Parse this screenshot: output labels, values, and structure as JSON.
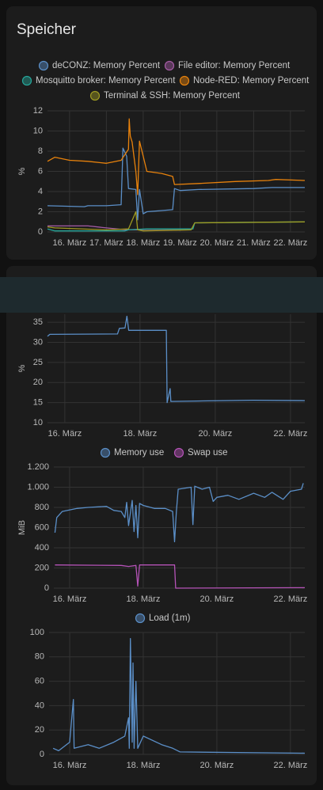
{
  "chart_data": [
    {
      "type": "line",
      "title": "Speicher",
      "ylabel": "%",
      "xlim": [
        15.4,
        22.39
      ],
      "ylim": [
        0,
        12
      ],
      "yticks": [
        0,
        2,
        4,
        6,
        8,
        10,
        12
      ],
      "xticks": [
        {
          "value": 16,
          "label": "16. März"
        },
        {
          "value": 17,
          "label": "17. März"
        },
        {
          "value": 18,
          "label": "18. März"
        },
        {
          "value": 19,
          "label": "19. März"
        },
        {
          "value": 20,
          "label": "20. März"
        },
        {
          "value": 21,
          "label": "21. März"
        },
        {
          "value": 22,
          "label": "22. März"
        }
      ],
      "grid": true,
      "series": [
        {
          "name": "deCONZ: Memory Percent",
          "color": "#5b8fc8",
          "x": [
            15.4,
            16.4,
            16.5,
            17.0,
            17.4,
            17.45,
            17.55,
            17.6,
            17.8,
            17.85,
            17.9,
            18.0,
            18.1,
            18.8,
            18.85,
            19.0,
            19.5,
            21.0,
            21.5,
            22.39
          ],
          "values": [
            2.6,
            2.5,
            2.6,
            2.6,
            2.7,
            8.3,
            7.5,
            4.3,
            4.2,
            1.2,
            4.2,
            1.8,
            2.0,
            2.2,
            4.3,
            4.1,
            4.2,
            4.3,
            4.4,
            4.4
          ]
        },
        {
          "name": "File editor: Memory Percent",
          "color": "#a55ca5",
          "x": [
            15.4,
            16.5,
            17.0,
            17.55,
            17.9,
            18.0,
            19.3
          ],
          "values": [
            0.6,
            0.6,
            0.4,
            0.2,
            0.2,
            0.15,
            0.2
          ]
        },
        {
          "name": "Mosquitto broker: Memory Percent",
          "color": "#26a69a",
          "x": [
            15.4,
            15.6,
            17.5,
            17.6,
            18.1,
            19.35,
            19.4,
            22.39
          ],
          "values": [
            0.3,
            0.1,
            0.1,
            0.2,
            0.3,
            0.3,
            0.9,
            1.0
          ]
        },
        {
          "name": "Node-RED: Memory Percent",
          "color": "#e8820c",
          "x": [
            15.4,
            15.6,
            16.0,
            16.5,
            17.0,
            17.4,
            17.6,
            17.62,
            17.65,
            17.7,
            17.8,
            17.85,
            17.9,
            18.0,
            18.1,
            18.5,
            18.8,
            18.85,
            19.5,
            20.5,
            21.4,
            21.6,
            22.39
          ],
          "values": [
            7.0,
            7.4,
            7.1,
            7.0,
            6.8,
            7.1,
            8.2,
            11.2,
            9.5,
            8.9,
            6.0,
            3.7,
            9.0,
            7.5,
            6.0,
            5.8,
            5.5,
            4.7,
            4.8,
            5.0,
            5.1,
            5.2,
            5.1
          ]
        },
        {
          "name": "Terminal & SSH: Memory Percent",
          "color": "#9e9a22",
          "x": [
            15.4,
            15.6,
            17.0,
            17.6,
            17.8,
            17.85,
            18.0,
            19.3,
            19.4,
            22.39
          ],
          "values": [
            0.5,
            0.4,
            0.2,
            0.3,
            2.0,
            0.2,
            0.1,
            0.2,
            0.9,
            1.0
          ]
        }
      ]
    },
    {
      "type": "line",
      "ylabel": "%",
      "xlim": [
        15.54,
        22.38
      ],
      "ylim": [
        10,
        37
      ],
      "yticks": [
        10,
        15,
        20,
        25,
        30,
        35
      ],
      "xticks": [
        {
          "value": 16,
          "label": "16. März"
        },
        {
          "value": 18,
          "label": "18. März"
        },
        {
          "value": 20,
          "label": "20. März"
        },
        {
          "value": 22,
          "label": "22. März"
        }
      ],
      "grid": true,
      "series": [
        {
          "color": "#5b8fc8",
          "x": [
            15.54,
            15.6,
            17.4,
            17.45,
            17.6,
            17.65,
            17.7,
            18.2,
            18.7,
            18.72,
            18.8,
            18.82,
            19.5,
            21.0,
            22.38
          ],
          "values": [
            31.5,
            32,
            32.1,
            33.5,
            33.6,
            36.5,
            33,
            33,
            33,
            15,
            18.5,
            15.3,
            15.4,
            15.6,
            15.5
          ]
        }
      ]
    },
    {
      "type": "line",
      "ylabel": "MiB",
      "xlim": [
        15.57,
        22.39
      ],
      "ylim": [
        0,
        1200
      ],
      "yticks": [
        0,
        200,
        400,
        600,
        800,
        {
          "value": 1000,
          "label": "1.000"
        },
        {
          "value": 1200,
          "label": "1.200"
        }
      ],
      "xticks": [
        {
          "value": 16,
          "label": "16. März"
        },
        {
          "value": 18,
          "label": "18. März"
        },
        {
          "value": 20,
          "label": "20. März"
        },
        {
          "value": 22,
          "label": "22. März"
        }
      ],
      "grid": true,
      "series": [
        {
          "name": "Memory use",
          "color": "#5b8fc8",
          "x": [
            15.6,
            15.65,
            15.8,
            16.2,
            16.5,
            17.0,
            17.2,
            17.4,
            17.5,
            17.55,
            17.6,
            17.7,
            17.75,
            17.8,
            17.85,
            17.9,
            18.0,
            18.3,
            18.6,
            18.8,
            18.85,
            18.9,
            18.95,
            19.3,
            19.35,
            19.4,
            19.6,
            19.8,
            19.9,
            20.0,
            20.3,
            20.6,
            21.0,
            21.3,
            21.5,
            21.8,
            22.0,
            22.3,
            22.35
          ],
          "values": [
            550,
            700,
            760,
            790,
            800,
            810,
            770,
            760,
            700,
            850,
            620,
            870,
            560,
            820,
            500,
            840,
            820,
            790,
            790,
            760,
            460,
            760,
            980,
            1000,
            630,
            1010,
            980,
            1000,
            860,
            900,
            920,
            880,
            940,
            900,
            950,
            880,
            960,
            980,
            1040
          ]
        },
        {
          "name": "Swap use",
          "color": "#b553b7",
          "x": [
            15.6,
            17.4,
            17.6,
            17.8,
            17.85,
            17.9,
            18.85,
            18.88,
            22.39
          ],
          "values": [
            230,
            225,
            215,
            225,
            20,
            230,
            230,
            0,
            5
          ]
        }
      ]
    },
    {
      "type": "line",
      "xlim": [
        15.44,
        22.39
      ],
      "ylim": [
        0,
        100
      ],
      "yticks": [
        0,
        20,
        40,
        60,
        80,
        100
      ],
      "xticks": [
        {
          "value": 16,
          "label": "16. März"
        },
        {
          "value": 18,
          "label": "18. März"
        },
        {
          "value": 20,
          "label": "20. März"
        },
        {
          "value": 22,
          "label": "22. März"
        }
      ],
      "grid": true,
      "series": [
        {
          "name": "Load (1m)",
          "color": "#5b8fc8",
          "x": [
            15.55,
            15.7,
            16.0,
            16.1,
            16.12,
            16.5,
            16.8,
            17.2,
            17.5,
            17.6,
            17.62,
            17.65,
            17.7,
            17.72,
            17.75,
            17.8,
            17.85,
            18.0,
            18.5,
            18.8,
            19.0,
            22.39
          ],
          "values": [
            5,
            3,
            10,
            45,
            5,
            8,
            5,
            10,
            15,
            30,
            5,
            95,
            10,
            75,
            5,
            60,
            5,
            15,
            8,
            5,
            2,
            1
          ]
        }
      ]
    }
  ]
}
